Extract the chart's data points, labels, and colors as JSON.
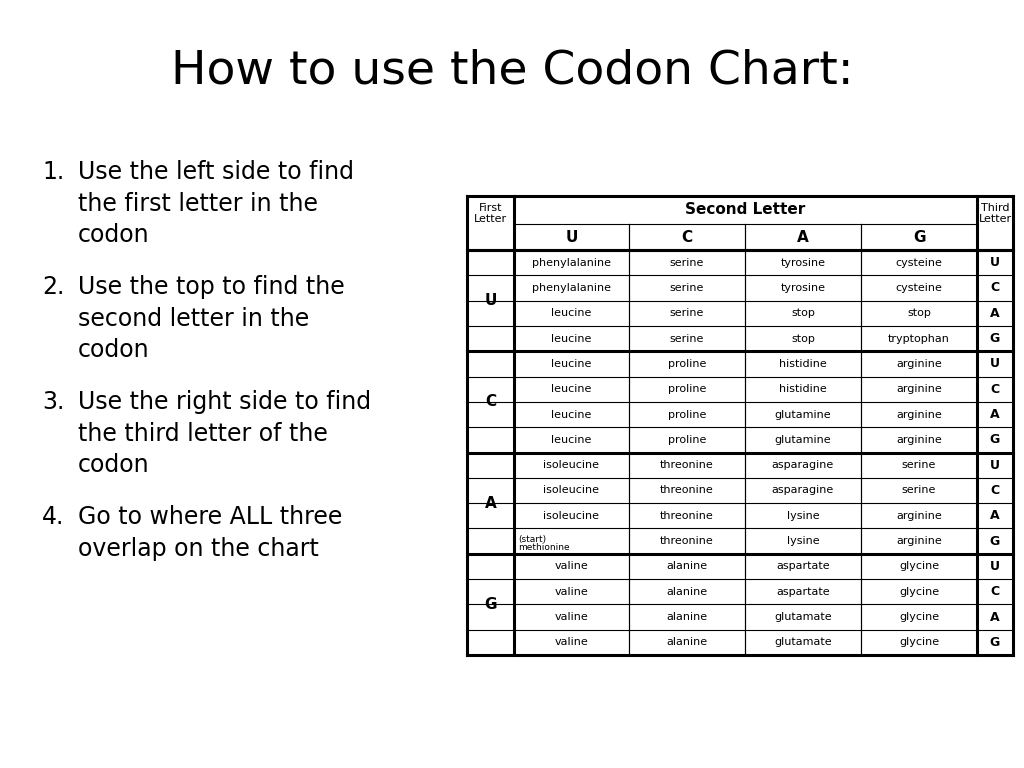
{
  "title": "How to use the Codon Chart:",
  "title_fontsize": 34,
  "bg_color": "#ffffff",
  "instructions": [
    [
      "1.",
      "Use the left side to find\nthe first letter in the\ncodon"
    ],
    [
      "2.",
      "Use the top to find the\nsecond letter in the\ncodon"
    ],
    [
      "3.",
      "Use the right side to find\nthe third letter of the\ncodon"
    ],
    [
      "4.",
      "Go to where ALL three\noverlap on the chart"
    ]
  ],
  "instr_fontsize": 17,
  "table_data": [
    [
      "phenylalanine",
      "serine",
      "tyrosine",
      "cysteine"
    ],
    [
      "phenylalanine",
      "serine",
      "tyrosine",
      "cysteine"
    ],
    [
      "leucine",
      "serine",
      "stop",
      "stop"
    ],
    [
      "leucine",
      "serine",
      "stop",
      "tryptophan"
    ],
    [
      "leucine",
      "proline",
      "histidine",
      "arginine"
    ],
    [
      "leucine",
      "proline",
      "histidine",
      "arginine"
    ],
    [
      "leucine",
      "proline",
      "glutamine",
      "arginine"
    ],
    [
      "leucine",
      "proline",
      "glutamine",
      "arginine"
    ],
    [
      "isoleucine",
      "threonine",
      "asparagine",
      "serine"
    ],
    [
      "isoleucine",
      "threonine",
      "asparagine",
      "serine"
    ],
    [
      "isoleucine",
      "threonine",
      "lysine",
      "arginine"
    ],
    [
      "(start)\nmethionine",
      "threonine",
      "lysine",
      "arginine"
    ],
    [
      "valine",
      "alanine",
      "aspartate",
      "glycine"
    ],
    [
      "valine",
      "alanine",
      "aspartate",
      "glycine"
    ],
    [
      "valine",
      "alanine",
      "glutamate",
      "glycine"
    ],
    [
      "valine",
      "alanine",
      "glutamate",
      "glycine"
    ]
  ],
  "first_letters": [
    "U",
    "C",
    "A",
    "G"
  ],
  "second_letters": [
    "U",
    "C",
    "A",
    "G"
  ],
  "third_letters": [
    "U",
    "C",
    "A",
    "G"
  ]
}
